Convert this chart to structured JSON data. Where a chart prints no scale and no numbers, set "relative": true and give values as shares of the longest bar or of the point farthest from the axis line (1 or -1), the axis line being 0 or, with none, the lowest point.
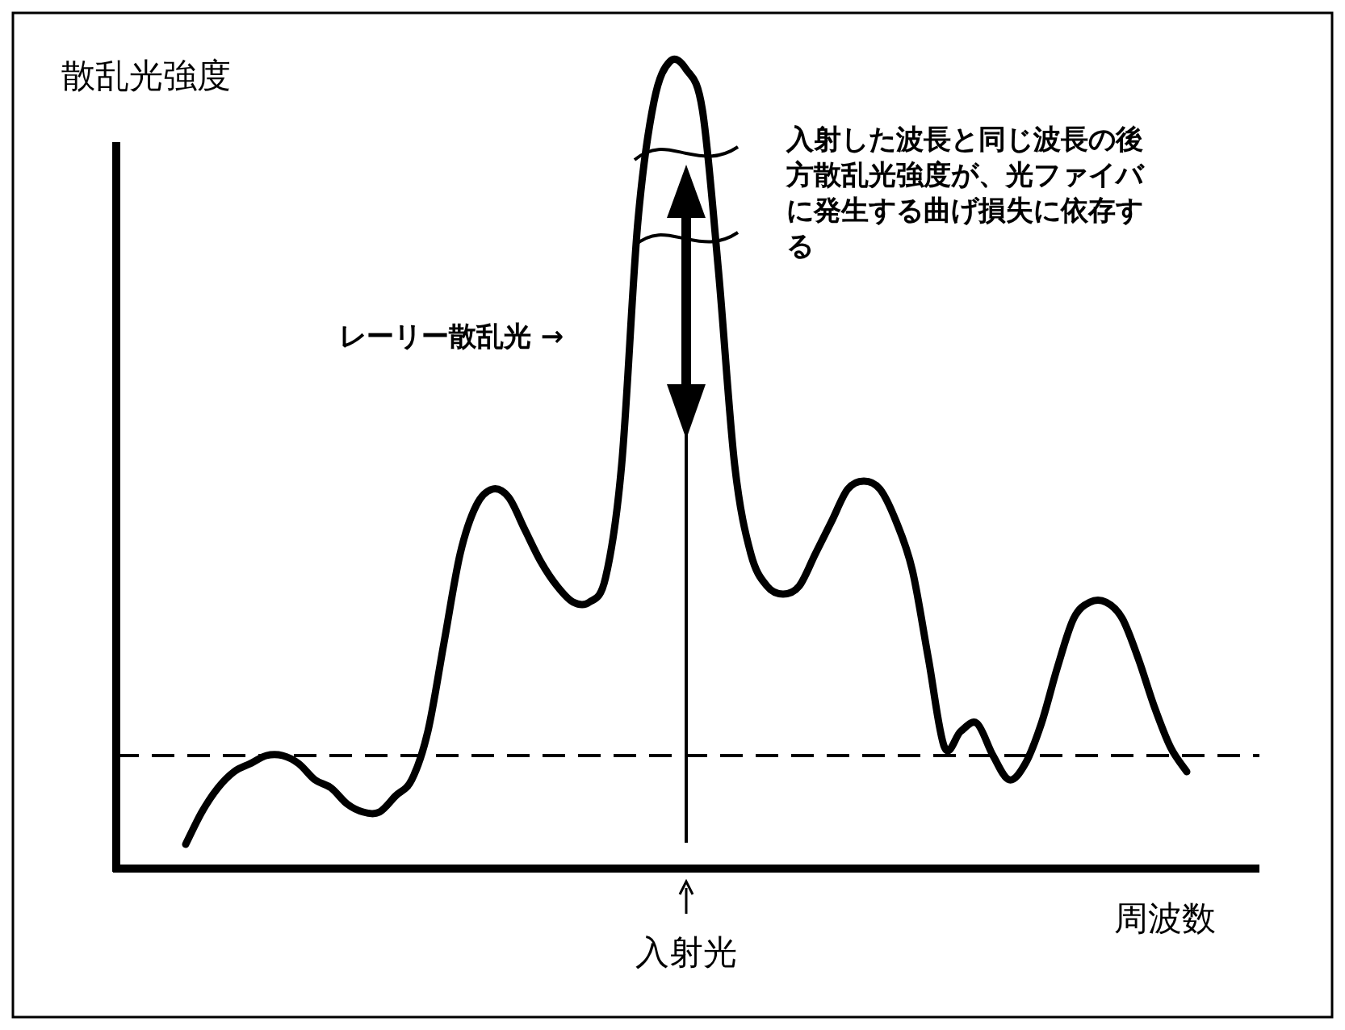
{
  "chart_data": {
    "type": "line",
    "relative": true,
    "xlabel": "周波数",
    "ylabel": "散乱光強度",
    "categories": [
      null,
      null,
      null,
      null,
      null,
      null,
      null,
      null,
      null,
      null,
      null,
      null,
      null,
      null,
      null,
      null,
      null,
      null,
      null,
      null,
      null,
      null,
      null,
      null,
      null,
      null,
      null,
      null,
      null,
      null,
      null,
      null,
      null,
      null,
      null,
      null,
      null,
      null,
      null,
      null,
      null,
      null,
      null,
      null,
      null,
      null,
      null,
      null,
      null,
      null,
      null,
      null,
      null,
      null,
      null,
      null,
      null,
      null,
      null,
      null,
      null,
      null,
      null
    ],
    "series": [
      {
        "color": "#000000",
        "values": [
          0.03,
          0.07,
          0.1,
          0.12,
          0.13,
          0.14,
          0.14,
          0.13,
          0.11,
          0.1,
          0.08,
          0.07,
          0.07,
          0.09,
          0.11,
          0.17,
          0.28,
          0.39,
          0.45,
          0.47,
          0.46,
          0.42,
          0.38,
          0.35,
          0.33,
          0.33,
          0.36,
          0.5,
          0.8,
          0.95,
          1.0,
          0.99,
          0.94,
          0.74,
          0.5,
          0.39,
          0.35,
          0.34,
          0.35,
          0.39,
          0.43,
          0.47,
          0.48,
          0.47,
          0.43,
          0.37,
          0.26,
          0.15,
          0.17,
          0.18,
          0.14,
          0.11,
          0.13,
          0.18,
          0.25,
          0.31,
          0.33,
          0.33,
          0.31,
          0.26,
          0.2,
          0.15,
          0.12
        ]
      }
    ],
    "line_style": "solid",
    "ref_lines": [
      {
        "axis": "y",
        "value": 0.14,
        "line_style": "dashed",
        "color": "#000000"
      }
    ],
    "annotations": [
      "レーリー散乱光 →",
      "入射した波長と同じ波長の後方散乱光強度が、光ファイバに発生する曲げ損失に依存する",
      "入射光"
    ]
  }
}
